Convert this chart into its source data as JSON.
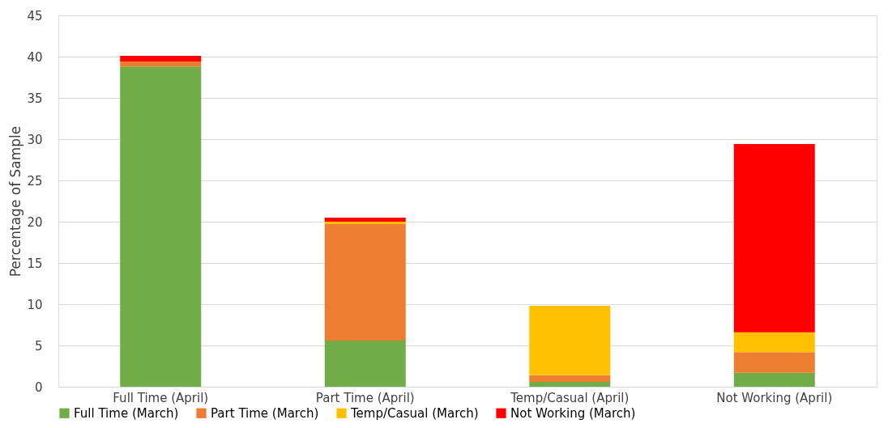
{
  "chart_data": {
    "type": "bar",
    "stacked": true,
    "ylabel": "Percentage of Sample",
    "categories": [
      "Full Time (April)",
      "Part Time (April)",
      "Temp/Casual (April)",
      "Not Working (April)"
    ],
    "series": [
      {
        "name": "Full Time (March)",
        "color": "#70ad47",
        "values": [
          38.8,
          5.6,
          0.6,
          1.7
        ]
      },
      {
        "name": "Part Time (March)",
        "color": "#ed7d31",
        "values": [
          0.6,
          14.1,
          0.8,
          2.5
        ]
      },
      {
        "name": "Temp/Casual (March)",
        "color": "#ffc000",
        "values": [
          null,
          0.3,
          8.4,
          2.4
        ]
      },
      {
        "name": "Not Working (March)",
        "color": "#ff0000",
        "values": [
          0.7,
          0.5,
          null,
          22.8
        ]
      }
    ],
    "ylim": [
      0,
      45
    ],
    "yticks": [
      0,
      5,
      10,
      15,
      20,
      25,
      30,
      35,
      40,
      45
    ],
    "grid": "y",
    "legend": "bottom"
  }
}
